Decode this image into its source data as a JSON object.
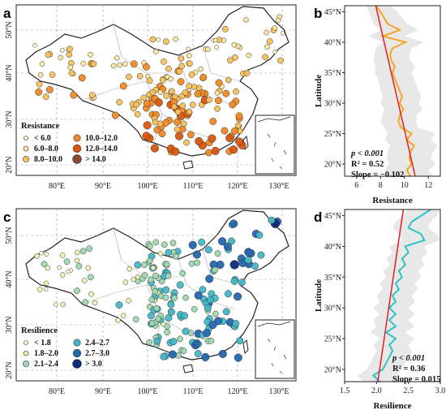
{
  "colors": {
    "resistance": [
      "#fff5cc",
      "#fde7a0",
      "#f9c25a",
      "#f08a24",
      "#d9560d",
      "#8b4a2c"
    ],
    "resilience": [
      "#ffffdd",
      "#ecf5b0",
      "#9fd8b0",
      "#43b7c6",
      "#2566b0",
      "#0d2a78"
    ],
    "resistance_line": "#f5a623",
    "resilience_line": "#2ec4c4",
    "fit_line": "#e02020",
    "band": "#d8d8d8",
    "dots_border": "#333333"
  },
  "maps": [
    {
      "panel": "a",
      "legend_title": "Resistance",
      "legend": [
        "< 6.0",
        "6.0–8.0",
        "8.0–10.0",
        "10.0–12.0",
        "12.0–14.0",
        "> 14.0"
      ],
      "x_ticks": [
        "80°E",
        "90°E",
        "100°E",
        "110°E",
        "120°E",
        "130°E"
      ],
      "y_ticks": [
        "50°N",
        "40°N",
        "30°N",
        "20°N"
      ]
    },
    {
      "panel": "c",
      "legend_title": "Resilience",
      "legend": [
        "< 1.8",
        "1.8–2.0",
        "2.1–2.4",
        "2.4–2.7",
        "2.7–3.0",
        "> 3.0"
      ],
      "x_ticks": [
        "80°E",
        "90°E",
        "100°E",
        "110°E",
        "120°E",
        "130°E"
      ],
      "y_ticks": [
        "50°N",
        "40°N",
        "30°N",
        "20°N"
      ]
    }
  ],
  "chart_data": [
    {
      "panel": "b",
      "type": "line",
      "xlabel": "Resistance",
      "ylabel": "Latitude",
      "xlim": [
        5,
        13
      ],
      "ylim": [
        18,
        46
      ],
      "x_ticks": [
        "6",
        "8",
        "10",
        "12"
      ],
      "y_ticks": [
        "20°N",
        "25°N",
        "30°N",
        "35°N",
        "40°N",
        "45°N"
      ],
      "stats": [
        "p < 0.001",
        "R² = 0.52",
        "Slope = −0.102"
      ],
      "series_lat": [
        46,
        45,
        44,
        43,
        42,
        41,
        40,
        39,
        38,
        37,
        36,
        35,
        34,
        33,
        32,
        31,
        30,
        29,
        28,
        27,
        26,
        25,
        24,
        23,
        22,
        21,
        20,
        19,
        18
      ],
      "series_x": [
        7.6,
        8.0,
        8.3,
        8.6,
        9.6,
        8.2,
        10.1,
        9.0,
        8.8,
        8.9,
        9.2,
        9.0,
        9.2,
        9.4,
        9.6,
        9.8,
        9.6,
        9.9,
        9.6,
        9.5,
        9.7,
        10.6,
        10.2,
        10.8,
        10.5,
        10.4,
        10.6,
        10.2,
        10.5
      ],
      "band_lo": [
        6.8,
        7.0,
        7.2,
        7.4,
        8.0,
        7.0,
        8.2,
        7.6,
        7.5,
        7.4,
        7.6,
        7.5,
        7.8,
        7.9,
        8.0,
        8.2,
        8.0,
        8.3,
        8.2,
        8.0,
        8.3,
        8.6,
        8.4,
        8.8,
        8.6,
        8.5,
        8.7,
        8.4,
        8.6
      ],
      "band_hi": [
        8.8,
        9.4,
        9.8,
        10.2,
        11.2,
        10.0,
        11.6,
        10.6,
        10.4,
        10.5,
        10.9,
        10.6,
        10.8,
        11.0,
        11.2,
        11.4,
        11.2,
        11.5,
        11.0,
        11.0,
        11.1,
        12.6,
        12.2,
        12.8,
        12.4,
        12.2,
        12.6,
        12.0,
        12.4
      ],
      "fit": [
        [
          7.6,
          46
        ],
        [
          10.9,
          18
        ]
      ]
    },
    {
      "panel": "d",
      "type": "line",
      "xlabel": "Resilience",
      "ylabel": "Latitude",
      "xlim": [
        1.5,
        3.0
      ],
      "ylim": [
        18,
        46
      ],
      "x_ticks": [
        "1.5",
        "2.0",
        "2.5",
        "3.0"
      ],
      "y_ticks": [
        "20°N",
        "25°N",
        "30°N",
        "35°N",
        "40°N",
        "45°N"
      ],
      "stats": [
        "p < 0.001",
        "R² = 0.36",
        "Slope = 0.015"
      ],
      "series_lat": [
        46,
        45,
        44,
        43,
        42,
        41,
        40,
        39,
        38,
        37,
        36,
        35,
        34,
        33,
        32,
        31,
        30,
        29,
        28,
        27,
        26,
        25,
        24,
        23,
        22,
        21,
        20,
        19,
        18
      ],
      "series_x": [
        2.85,
        2.7,
        2.55,
        2.5,
        2.7,
        2.75,
        2.45,
        2.5,
        2.4,
        2.45,
        2.35,
        2.4,
        2.3,
        2.35,
        2.25,
        2.3,
        2.2,
        2.3,
        2.2,
        2.3,
        2.15,
        2.3,
        2.2,
        2.25,
        2.2,
        2.15,
        2.1,
        1.95,
        2.05
      ],
      "band_lo": [
        2.5,
        2.4,
        2.3,
        2.25,
        2.35,
        2.4,
        2.2,
        2.25,
        2.15,
        2.2,
        2.1,
        2.15,
        2.05,
        2.1,
        2.0,
        2.05,
        1.95,
        2.05,
        1.95,
        2.0,
        1.9,
        2.05,
        1.95,
        2.0,
        1.95,
        1.9,
        1.85,
        1.7,
        1.8
      ],
      "band_hi": [
        3.0,
        2.95,
        2.85,
        2.8,
        2.95,
        3.0,
        2.75,
        2.8,
        2.7,
        2.75,
        2.65,
        2.7,
        2.6,
        2.65,
        2.55,
        2.6,
        2.5,
        2.6,
        2.5,
        2.6,
        2.45,
        2.6,
        2.5,
        2.55,
        2.5,
        2.45,
        2.4,
        2.3,
        2.35
      ],
      "fit": [
        [
          2.42,
          46
        ],
        [
          2.02,
          18
        ]
      ]
    }
  ]
}
